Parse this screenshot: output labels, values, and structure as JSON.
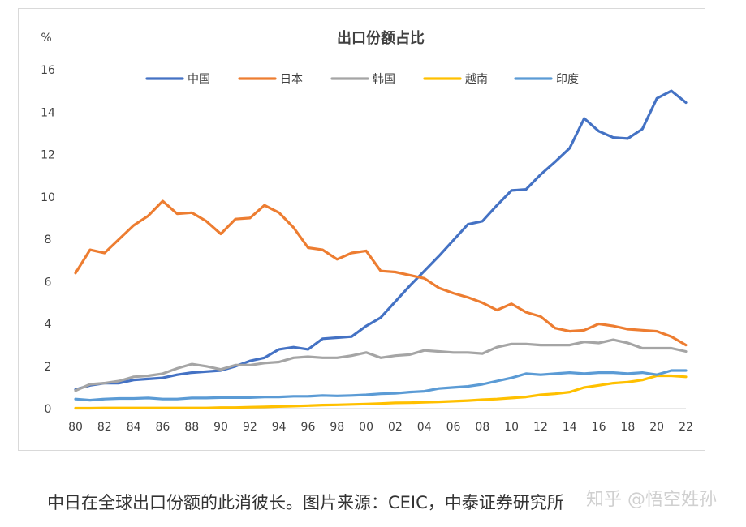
{
  "chart_data": {
    "type": "line",
    "title": "出口份额占比",
    "ylabel": "%",
    "xlabel": "",
    "ylim": [
      0,
      16
    ],
    "yticks": [
      0,
      2,
      4,
      6,
      8,
      10,
      12,
      14,
      16
    ],
    "x": [
      1980,
      1981,
      1982,
      1983,
      1984,
      1985,
      1986,
      1987,
      1988,
      1989,
      1990,
      1991,
      1992,
      1993,
      1994,
      1995,
      1996,
      1997,
      1998,
      1999,
      2000,
      2001,
      2002,
      2003,
      2004,
      2005,
      2006,
      2007,
      2008,
      2009,
      2010,
      2011,
      2012,
      2013,
      2014,
      2015,
      2016,
      2017,
      2018,
      2019,
      2020,
      2021,
      2022
    ],
    "xtick_labels": [
      "80",
      "82",
      "84",
      "86",
      "88",
      "90",
      "92",
      "94",
      "96",
      "98",
      "00",
      "02",
      "04",
      "06",
      "08",
      "10",
      "12",
      "14",
      "16",
      "18",
      "20",
      "22"
    ],
    "grid": false,
    "legend_position": "top-center",
    "series": [
      {
        "name": "中国",
        "color": "#4472c4",
        "values": [
          0.9,
          1.1,
          1.2,
          1.2,
          1.35,
          1.4,
          1.45,
          1.6,
          1.7,
          1.75,
          1.8,
          2.0,
          2.25,
          2.4,
          2.8,
          2.9,
          2.8,
          3.3,
          3.35,
          3.4,
          3.9,
          4.3,
          5.05,
          5.8,
          6.5,
          7.2,
          7.95,
          8.7,
          8.85,
          9.6,
          10.3,
          10.35,
          11.05,
          11.65,
          12.3,
          13.7,
          13.1,
          12.8,
          12.75,
          13.2,
          14.65,
          15.0,
          14.45
        ]
      },
      {
        "name": "日本",
        "color": "#ed7d31",
        "values": [
          6.4,
          7.5,
          7.35,
          8.0,
          8.65,
          9.1,
          9.8,
          9.2,
          9.25,
          8.85,
          8.25,
          8.95,
          9.0,
          9.6,
          9.25,
          8.55,
          7.6,
          7.5,
          7.05,
          7.35,
          7.45,
          6.5,
          6.45,
          6.3,
          6.15,
          5.7,
          5.45,
          5.25,
          5.0,
          4.65,
          4.95,
          4.55,
          4.35,
          3.8,
          3.65,
          3.7,
          4.0,
          3.9,
          3.75,
          3.7,
          3.65,
          3.4,
          3.0
        ]
      },
      {
        "name": "韩国",
        "color": "#a5a5a5",
        "values": [
          0.85,
          1.15,
          1.2,
          1.3,
          1.5,
          1.55,
          1.65,
          1.9,
          2.1,
          2.0,
          1.85,
          2.05,
          2.05,
          2.15,
          2.2,
          2.4,
          2.45,
          2.4,
          2.4,
          2.5,
          2.65,
          2.4,
          2.5,
          2.55,
          2.75,
          2.7,
          2.65,
          2.65,
          2.6,
          2.9,
          3.05,
          3.05,
          3.0,
          3.0,
          3.0,
          3.15,
          3.1,
          3.25,
          3.1,
          2.85,
          2.85,
          2.85,
          2.7
        ]
      },
      {
        "name": "越南",
        "color": "#ffc000",
        "values": [
          0.02,
          0.02,
          0.03,
          0.03,
          0.03,
          0.03,
          0.03,
          0.03,
          0.03,
          0.03,
          0.05,
          0.05,
          0.07,
          0.08,
          0.1,
          0.12,
          0.14,
          0.17,
          0.18,
          0.2,
          0.22,
          0.24,
          0.27,
          0.28,
          0.3,
          0.32,
          0.35,
          0.38,
          0.42,
          0.45,
          0.5,
          0.55,
          0.65,
          0.7,
          0.78,
          1.0,
          1.1,
          1.2,
          1.25,
          1.35,
          1.55,
          1.55,
          1.5
        ]
      },
      {
        "name": "印度",
        "color": "#5b9bd5",
        "values": [
          0.45,
          0.4,
          0.45,
          0.48,
          0.48,
          0.5,
          0.45,
          0.45,
          0.5,
          0.5,
          0.52,
          0.52,
          0.52,
          0.55,
          0.55,
          0.58,
          0.58,
          0.62,
          0.6,
          0.62,
          0.65,
          0.7,
          0.72,
          0.78,
          0.82,
          0.95,
          1.0,
          1.05,
          1.15,
          1.3,
          1.45,
          1.65,
          1.6,
          1.65,
          1.7,
          1.65,
          1.7,
          1.7,
          1.65,
          1.7,
          1.6,
          1.8,
          1.8
        ]
      }
    ]
  },
  "caption": "中日在全球出口份额的此消彼长。图片来源：CEIC，中泰证券研究所",
  "watermark": "知乎 @悟空姓孙"
}
